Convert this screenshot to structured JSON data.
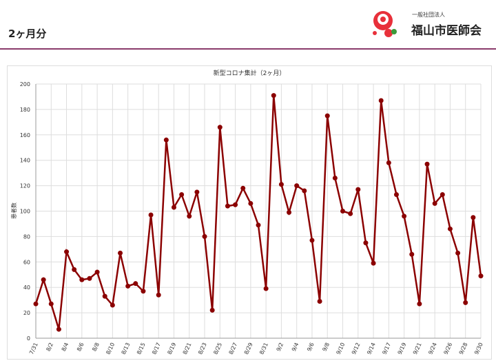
{
  "header": {
    "title": "2ヶ月分",
    "org_type": "一般社団法人",
    "org_name": "福山市医師会"
  },
  "chart_data": {
    "type": "line",
    "title": "新型コロナ集計（2ヶ月）",
    "y_label": "患者数",
    "categories": [
      "7/31",
      null,
      "8/2",
      null,
      "8/4",
      null,
      "8/6",
      null,
      "8/8",
      null,
      "8/10",
      null,
      "8/13",
      null,
      "8/15",
      null,
      "8/17",
      null,
      "8/19",
      null,
      "8/21",
      null,
      "8/23",
      null,
      "8/25",
      null,
      "8/27",
      null,
      "8/29",
      null,
      "8/31",
      null,
      "9/2",
      null,
      "9/4",
      null,
      "9/6",
      null,
      "9/8",
      null,
      "9/10",
      null,
      "9/12",
      null,
      "9/14",
      null,
      "9/17",
      null,
      "9/19",
      null,
      "9/21",
      null,
      "9/24",
      null,
      "9/26",
      null,
      "9/28",
      null,
      "9/30"
    ],
    "values": [
      27,
      46,
      27,
      7,
      68,
      54,
      46,
      47,
      52,
      33,
      26,
      67,
      41,
      43,
      37,
      97,
      34,
      156,
      103,
      113,
      96,
      115,
      80,
      22,
      166,
      104,
      105,
      118,
      106,
      89,
      39,
      191,
      121,
      99,
      120,
      116,
      77,
      29,
      175,
      126,
      100,
      98,
      117,
      75,
      59,
      187,
      138,
      113,
      96,
      66,
      27,
      137,
      106,
      113,
      86,
      67,
      28,
      95,
      49
    ],
    "color": "#8b0000",
    "ylim": [
      0,
      200
    ],
    "yticks": [
      0,
      20,
      40,
      60,
      80,
      100,
      120,
      140,
      160,
      180,
      200
    ],
    "grid": true
  }
}
